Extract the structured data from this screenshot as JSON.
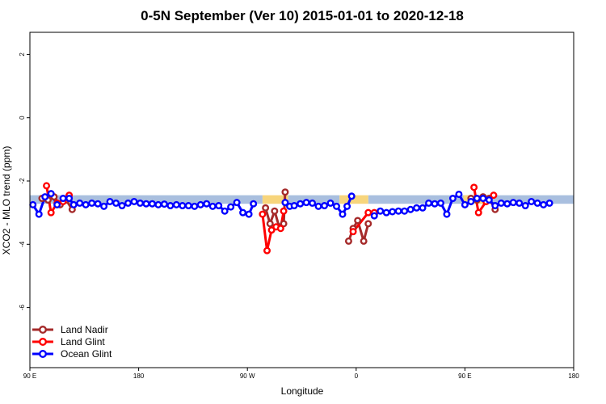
{
  "chart_data": {
    "type": "line",
    "title": "0-5N September (Ver 10)   2015-01-01 to 2020-12-18",
    "xlabel": "Longitude",
    "ylabel": "XCO2 - MLO trend (ppm)",
    "xlim": [
      90,
      450
    ],
    "ylim": [
      -7.9,
      2.7
    ],
    "xticks": [
      {
        "value": 90,
        "label": "90 E"
      },
      {
        "value": 162,
        "label": "180"
      },
      {
        "value": 234,
        "label": "90 W"
      },
      {
        "value": 306,
        "label": "0"
      },
      {
        "value": 378,
        "label": "90 E"
      },
      {
        "value": 450,
        "label": "180"
      }
    ],
    "yticks": [
      {
        "value": 2,
        "label": "2"
      },
      {
        "value": 0,
        "label": "0"
      },
      {
        "value": -2,
        "label": "-2"
      },
      {
        "value": -4,
        "label": "-4"
      },
      {
        "value": -6,
        "label": "-6"
      }
    ],
    "bands": [
      {
        "name": "ocean",
        "color": "#a9bfdf",
        "from": -2.45,
        "to": -2.72,
        "segments": [
          [
            90,
            244
          ],
          [
            261,
            295
          ],
          [
            314,
            450
          ]
        ]
      },
      {
        "name": "land",
        "color": "#f7d57c",
        "from": -2.45,
        "to": -2.72,
        "segments": [
          [
            244,
            261
          ],
          [
            295,
            314
          ],
          [
            377,
            391
          ]
        ]
      }
    ],
    "series": [
      {
        "name": "Land Nadir",
        "color": "#a52a2a",
        "segments": [
          [
            [
              98,
              -2.55
            ],
            [
              102,
              -2.6
            ],
            [
              106,
              -2.5
            ],
            [
              110,
              -2.75
            ],
            [
              114,
              -2.6
            ],
            [
              118,
              -2.9
            ]
          ],
          [
            [
              246,
              -2.85
            ],
            [
              249,
              -3.35
            ],
            [
              252,
              -2.95
            ],
            [
              255,
              -3.45
            ],
            [
              258,
              -3.35
            ],
            [
              259,
              -2.35
            ]
          ],
          [
            [
              301,
              -3.9
            ],
            [
              304,
              -3.5
            ],
            [
              307,
              -3.25
            ],
            [
              311,
              -3.9
            ],
            [
              314,
              -3.35
            ]
          ],
          [
            [
              382,
              -2.55
            ],
            [
              386,
              -2.6
            ],
            [
              390,
              -2.5
            ],
            [
              394,
              -2.55
            ],
            [
              398,
              -2.9
            ]
          ]
        ]
      },
      {
        "name": "Land Glint",
        "color": "#ff0000",
        "segments": [
          [
            [
              101,
              -2.15
            ],
            [
              104,
              -3.0
            ],
            [
              108,
              -2.7
            ],
            [
              112,
              -2.65
            ],
            [
              116,
              -2.45
            ]
          ],
          [
            [
              244,
              -3.05
            ],
            [
              247,
              -4.2
            ],
            [
              250,
              -3.55
            ],
            [
              253,
              -3.45
            ],
            [
              256,
              -3.5
            ],
            [
              258,
              -2.95
            ]
          ],
          [
            [
              304,
              -3.6
            ],
            [
              314,
              -3.0
            ],
            [
              318,
              -3.0
            ]
          ],
          [
            [
              384,
              -2.2
            ],
            [
              387,
              -3.0
            ],
            [
              392,
              -2.65
            ],
            [
              397,
              -2.45
            ]
          ]
        ]
      },
      {
        "name": "Ocean Glint",
        "color": "#0000ff",
        "segments": [
          [
            [
              92,
              -2.75
            ],
            [
              96,
              -3.05
            ],
            [
              100,
              -2.5
            ],
            [
              104,
              -2.4
            ],
            [
              108,
              -2.75
            ],
            [
              112,
              -2.55
            ],
            [
              116,
              -2.55
            ],
            [
              119,
              -2.75
            ],
            [
              123,
              -2.7
            ],
            [
              127,
              -2.75
            ],
            [
              131,
              -2.7
            ],
            [
              135,
              -2.72
            ],
            [
              139,
              -2.8
            ],
            [
              143,
              -2.65
            ],
            [
              147,
              -2.7
            ],
            [
              151,
              -2.78
            ],
            [
              155,
              -2.7
            ],
            [
              159,
              -2.65
            ],
            [
              163,
              -2.7
            ],
            [
              167,
              -2.72
            ],
            [
              171,
              -2.72
            ],
            [
              175,
              -2.75
            ],
            [
              179,
              -2.73
            ],
            [
              183,
              -2.78
            ],
            [
              187,
              -2.75
            ],
            [
              191,
              -2.78
            ],
            [
              195,
              -2.78
            ],
            [
              199,
              -2.8
            ],
            [
              203,
              -2.75
            ],
            [
              207,
              -2.72
            ],
            [
              211,
              -2.8
            ],
            [
              215,
              -2.78
            ],
            [
              219,
              -2.95
            ],
            [
              223,
              -2.82
            ],
            [
              227,
              -2.68
            ],
            [
              231,
              -3.0
            ],
            [
              235,
              -3.05
            ],
            [
              238,
              -2.72
            ]
          ],
          [
            [
              259,
              -2.68
            ],
            [
              262,
              -2.8
            ],
            [
              265,
              -2.78
            ],
            [
              269,
              -2.72
            ],
            [
              273,
              -2.68
            ],
            [
              277,
              -2.7
            ],
            [
              281,
              -2.8
            ],
            [
              285,
              -2.78
            ],
            [
              289,
              -2.7
            ],
            [
              293,
              -2.8
            ],
            [
              297,
              -3.05
            ],
            [
              300,
              -2.8
            ],
            [
              303,
              -2.48
            ]
          ],
          [
            [
              318,
              -3.1
            ],
            [
              322,
              -2.95
            ],
            [
              326,
              -3.0
            ],
            [
              330,
              -2.97
            ],
            [
              334,
              -2.95
            ],
            [
              338,
              -2.95
            ],
            [
              342,
              -2.9
            ],
            [
              346,
              -2.85
            ],
            [
              350,
              -2.85
            ],
            [
              354,
              -2.7
            ],
            [
              358,
              -2.72
            ],
            [
              362,
              -2.7
            ],
            [
              366,
              -3.05
            ],
            [
              370,
              -2.55
            ],
            [
              374,
              -2.42
            ],
            [
              378,
              -2.75
            ],
            [
              382,
              -2.65
            ],
            [
              386,
              -2.55
            ],
            [
              390,
              -2.55
            ],
            [
              394,
              -2.6
            ],
            [
              398,
              -2.78
            ],
            [
              402,
              -2.7
            ],
            [
              406,
              -2.72
            ],
            [
              410,
              -2.68
            ],
            [
              414,
              -2.7
            ],
            [
              418,
              -2.78
            ],
            [
              422,
              -2.65
            ],
            [
              426,
              -2.7
            ],
            [
              430,
              -2.75
            ],
            [
              434,
              -2.7
            ]
          ]
        ]
      }
    ],
    "legend": {
      "position": "bottom-left"
    }
  }
}
